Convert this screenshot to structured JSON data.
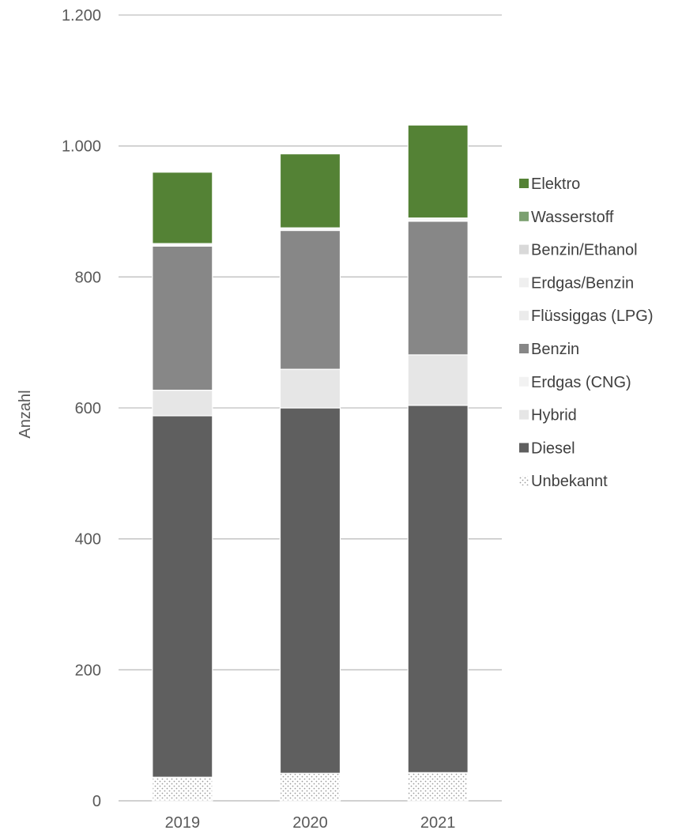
{
  "chart_data": {
    "type": "bar",
    "stacked": true,
    "categories": [
      "2019",
      "2020",
      "2021"
    ],
    "ylabel": "Anzahl",
    "ylim": [
      0,
      1200
    ],
    "yticks": [
      {
        "value": 0,
        "label": "0"
      },
      {
        "value": 200,
        "label": "200"
      },
      {
        "value": 400,
        "label": "400"
      },
      {
        "value": 600,
        "label": "600"
      },
      {
        "value": 800,
        "label": "800"
      },
      {
        "value": 1000,
        "label": "1.000"
      },
      {
        "value": 1200,
        "label": "1.200"
      }
    ],
    "grid": true,
    "legend_position": "right",
    "series": [
      {
        "name": "Unbekannt",
        "color": "#ffffff",
        "pattern": "dotted",
        "values": [
          36,
          42,
          43
        ]
      },
      {
        "name": "Diesel",
        "color": "#5f5f5f",
        "values": [
          552,
          558,
          561
        ]
      },
      {
        "name": "Hybrid",
        "color": "#e6e6e6",
        "values": [
          39,
          59,
          77
        ]
      },
      {
        "name": "Erdgas (CNG)",
        "color": "#f2f2f2",
        "values": [
          0,
          0,
          0
        ]
      },
      {
        "name": "Benzin",
        "color": "#878787",
        "values": [
          220,
          212,
          204
        ]
      },
      {
        "name": "Flüssiggas (LPG)",
        "color": "#ebebeb",
        "values": [
          0,
          0,
          0
        ]
      },
      {
        "name": "Erdgas/Benzin",
        "color": "#efefef",
        "values": [
          2,
          2,
          2
        ]
      },
      {
        "name": "Benzin/Ethanol",
        "color": "#d9d9d9",
        "values": [
          2,
          2,
          2
        ]
      },
      {
        "name": "Wasserstoff",
        "color": "#7ba070",
        "values": [
          0,
          0,
          1
        ]
      },
      {
        "name": "Elektro",
        "color": "#548235",
        "values": [
          109,
          113,
          142
        ]
      }
    ],
    "legend_order": [
      "Elektro",
      "Wasserstoff",
      "Benzin/Ethanol",
      "Erdgas/Benzin",
      "Flüssiggas (LPG)",
      "Benzin",
      "Erdgas (CNG)",
      "Hybrid",
      "Diesel",
      "Unbekannt"
    ]
  }
}
